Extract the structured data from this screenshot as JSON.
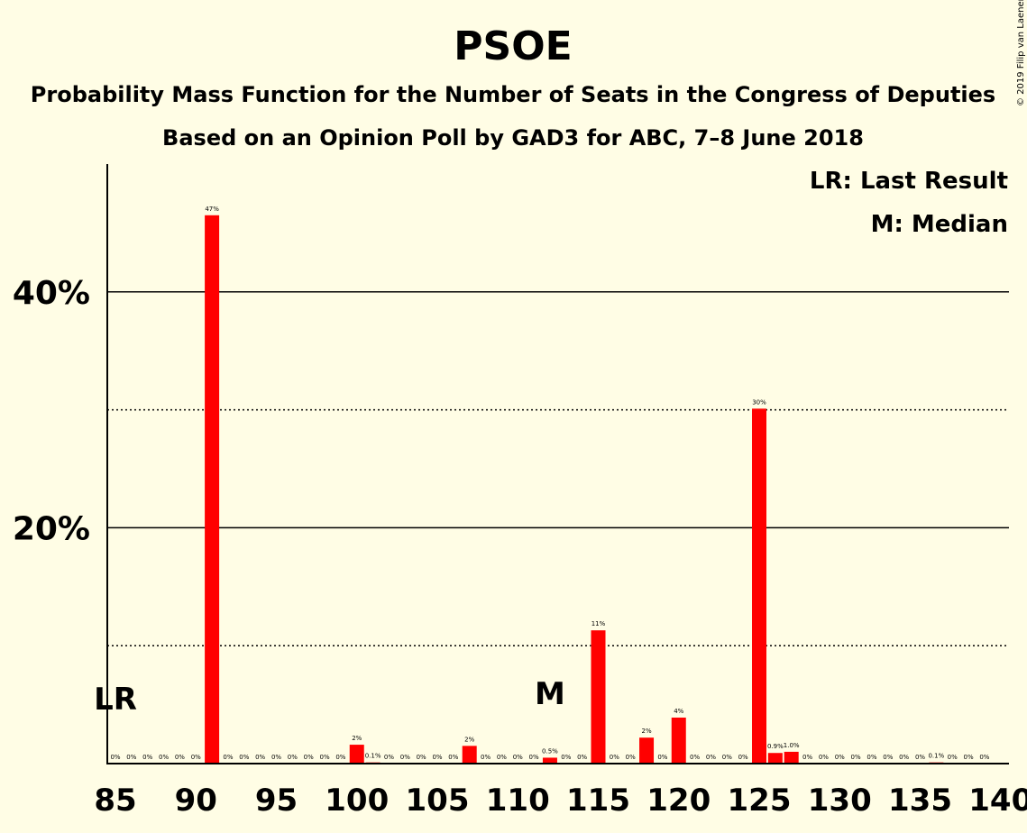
{
  "title": "PSOE",
  "subtitle1": "Probability Mass Function for the Number of Seats in the Congress of Deputies",
  "subtitle2": "Based on an Opinion Poll by GAD3 for ABC, 7–8 June 2018",
  "copyright": "© 2019 Filip van Laenen",
  "legend": {
    "lr": "LR: Last Result",
    "m": "M: Median"
  },
  "markers": {
    "lr": {
      "label": "LR",
      "x": 85
    },
    "m": {
      "label": "M",
      "x": 112
    }
  },
  "colors": {
    "bar": "#FF0000",
    "background": "#FFFDE5",
    "axis": "#000000"
  },
  "chart_data": {
    "type": "bar",
    "title": "PSOE",
    "x": [
      85,
      86,
      87,
      88,
      89,
      90,
      91,
      92,
      93,
      94,
      95,
      96,
      97,
      98,
      99,
      100,
      101,
      102,
      103,
      104,
      105,
      106,
      107,
      108,
      109,
      110,
      111,
      112,
      113,
      114,
      115,
      116,
      117,
      118,
      119,
      120,
      121,
      122,
      123,
      124,
      125,
      126,
      127,
      128,
      129,
      130,
      131,
      132,
      133,
      134,
      135,
      136,
      137,
      138,
      139,
      140
    ],
    "values": [
      0,
      0,
      0,
      0,
      0,
      0,
      46.5,
      0,
      0,
      0,
      0,
      0,
      0,
      0,
      0,
      1.6,
      0.1,
      0,
      0,
      0,
      0,
      0,
      1.5,
      0,
      0,
      0,
      0,
      0.5,
      0,
      0,
      11.3,
      0,
      0,
      2.2,
      0,
      3.9,
      0,
      0,
      0,
      0,
      30.1,
      0.9,
      1.0,
      0,
      0,
      0,
      0,
      0,
      0,
      0,
      0,
      0.1,
      0,
      0,
      0,
      0
    ],
    "labels": [
      "0%",
      "0%",
      "0%",
      "0%",
      "0%",
      "0%",
      "47%",
      "0%",
      "0%",
      "0%",
      "0%",
      "0%",
      "0%",
      "0%",
      "0%",
      "2%",
      "0.1%",
      "0%",
      "0%",
      "0%",
      "0%",
      "0%",
      "2%",
      "0%",
      "0%",
      "0%",
      "0%",
      "0.5%",
      "0%",
      "0%",
      "11%",
      "0%",
      "0%",
      "2%",
      "0%",
      "4%",
      "0%",
      "0%",
      "0%",
      "0%",
      "30%",
      "0.9%",
      "1.0%",
      "0%",
      "0%",
      "0%",
      "0%",
      "0%",
      "0%",
      "0%",
      "0%",
      "0.1%",
      "0%",
      "0%",
      "0%",
      ""
    ],
    "xticks": [
      85,
      90,
      95,
      100,
      105,
      110,
      115,
      120,
      125,
      130,
      135,
      140
    ],
    "yticks": [
      {
        "value": 20,
        "label": "20%"
      },
      {
        "value": 40,
        "label": "40%"
      }
    ],
    "dotted_lines": [
      10,
      30
    ],
    "xlim": [
      85,
      140
    ],
    "ylim": [
      0,
      50
    ]
  }
}
